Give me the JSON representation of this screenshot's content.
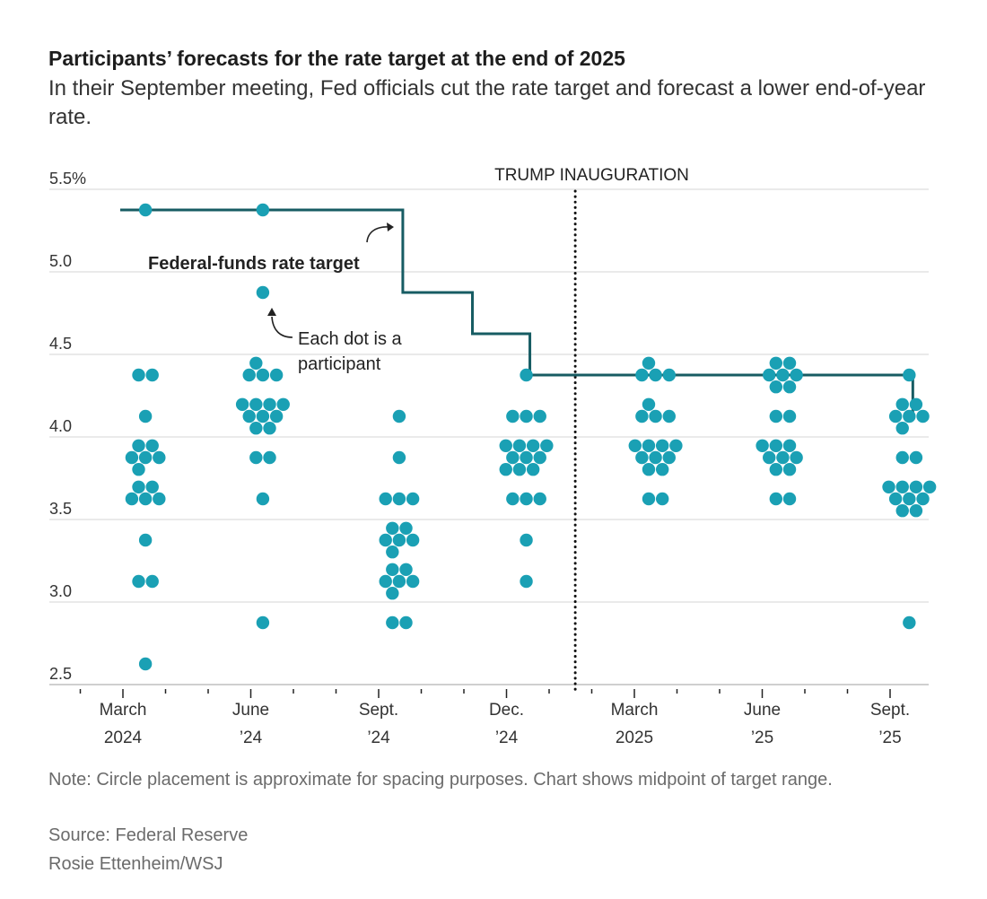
{
  "title": "Participants’ forecasts for the rate target at the end of 2025",
  "subtitle": "In their September meeting, Fed officials cut the rate target and forecast a lower end-of-year rate.",
  "notes": {
    "note": "Note: Circle placement is approximate for spacing purposes. Chart shows midpoint of target range.",
    "source": "Source: Federal Reserve",
    "credit": "Rosie Ettenheim/WSJ"
  },
  "chart_data": {
    "type": "scatter",
    "title": "Participants’ forecasts for the rate target at the end of 2025",
    "ylim": [
      2.5,
      5.5
    ],
    "yticks": [
      {
        "value": 5.5,
        "label": "5.5%"
      },
      {
        "value": 5.0,
        "label": "5.0"
      },
      {
        "value": 4.5,
        "label": "4.5"
      },
      {
        "value": 4.0,
        "label": "4.0"
      },
      {
        "value": 3.5,
        "label": "3.5"
      },
      {
        "value": 3.0,
        "label": "3.0"
      },
      {
        "value": 2.5,
        "label": "2.5"
      }
    ],
    "grid": true,
    "xlim": [
      "2024-01",
      "2025-10"
    ],
    "xticks": [
      {
        "date": "2024-03",
        "line1": "March",
        "line2": "2024"
      },
      {
        "date": "2024-06",
        "line1": "June",
        "line2": "’24"
      },
      {
        "date": "2024-09",
        "line1": "Sept.",
        "line2": "’24"
      },
      {
        "date": "2024-12",
        "line1": "Dec.",
        "line2": "’24"
      },
      {
        "date": "2025-03",
        "line1": "March",
        "line2": "2025"
      },
      {
        "date": "2025-06",
        "line1": "June",
        "line2": "’25"
      },
      {
        "date": "2025-09",
        "line1": "Sept.",
        "line2": "’25"
      }
    ],
    "minor_ticks": "monthly",
    "dot_color": "#1aa0b4",
    "line_color": "#175c63",
    "meetings": [
      {
        "date": "2024-03-20",
        "dots": [
          {
            "rate": 5.375,
            "count": 1
          },
          {
            "rate": 4.375,
            "count": 2
          },
          {
            "rate": 4.125,
            "count": 1
          },
          {
            "rate": 3.875,
            "count": 6
          },
          {
            "rate": 3.625,
            "count": 5
          },
          {
            "rate": 3.375,
            "count": 1
          },
          {
            "rate": 3.125,
            "count": 2
          },
          {
            "rate": 2.625,
            "count": 1
          }
        ]
      },
      {
        "date": "2024-06-12",
        "dots": [
          {
            "rate": 5.375,
            "count": 1
          },
          {
            "rate": 4.875,
            "count": 1
          },
          {
            "rate": 4.375,
            "count": 4
          },
          {
            "rate": 4.125,
            "count": 9
          },
          {
            "rate": 3.875,
            "count": 2
          },
          {
            "rate": 3.625,
            "count": 1
          },
          {
            "rate": 2.875,
            "count": 1
          }
        ]
      },
      {
        "date": "2024-09-18",
        "dots": [
          {
            "rate": 4.125,
            "count": 1
          },
          {
            "rate": 3.875,
            "count": 1
          },
          {
            "rate": 3.625,
            "count": 3
          },
          {
            "rate": 3.375,
            "count": 6
          },
          {
            "rate": 3.125,
            "count": 6
          },
          {
            "rate": 2.875,
            "count": 2
          }
        ]
      },
      {
        "date": "2024-12-18",
        "dots": [
          {
            "rate": 4.375,
            "count": 1
          },
          {
            "rate": 4.125,
            "count": 3
          },
          {
            "rate": 3.875,
            "count": 10
          },
          {
            "rate": 3.625,
            "count": 3
          },
          {
            "rate": 3.375,
            "count": 1
          },
          {
            "rate": 3.125,
            "count": 1
          }
        ]
      },
      {
        "date": "2025-03-19",
        "dots": [
          {
            "rate": 4.375,
            "count": 4
          },
          {
            "rate": 4.125,
            "count": 4
          },
          {
            "rate": 3.875,
            "count": 9
          },
          {
            "rate": 3.625,
            "count": 2
          }
        ]
      },
      {
        "date": "2025-06-18",
        "dots": [
          {
            "rate": 4.375,
            "count": 7
          },
          {
            "rate": 4.125,
            "count": 2
          },
          {
            "rate": 3.875,
            "count": 8
          },
          {
            "rate": 3.625,
            "count": 2
          }
        ]
      },
      {
        "date": "2025-09-17",
        "dots": [
          {
            "rate": 4.375,
            "count": 1
          },
          {
            "rate": 4.125,
            "count": 6
          },
          {
            "rate": 3.875,
            "count": 2
          },
          {
            "rate": 3.625,
            "count": 9
          },
          {
            "rate": 2.875,
            "count": 1
          }
        ]
      }
    ],
    "rate_target": [
      {
        "date": "2024-03-01",
        "rate": 5.375
      },
      {
        "date": "2024-09-18",
        "rate": 4.875
      },
      {
        "date": "2024-11-07",
        "rate": 4.625
      },
      {
        "date": "2024-12-18",
        "rate": 4.375
      },
      {
        "date": "2025-09-17",
        "rate": 4.125
      }
    ],
    "events": [
      {
        "date": "2025-01-20",
        "label": "TRUMP INAUGURATION"
      }
    ],
    "annotations": {
      "line_label": "Federal-funds rate target",
      "dot_label_1": "Each dot is a",
      "dot_label_2": "participant"
    }
  }
}
